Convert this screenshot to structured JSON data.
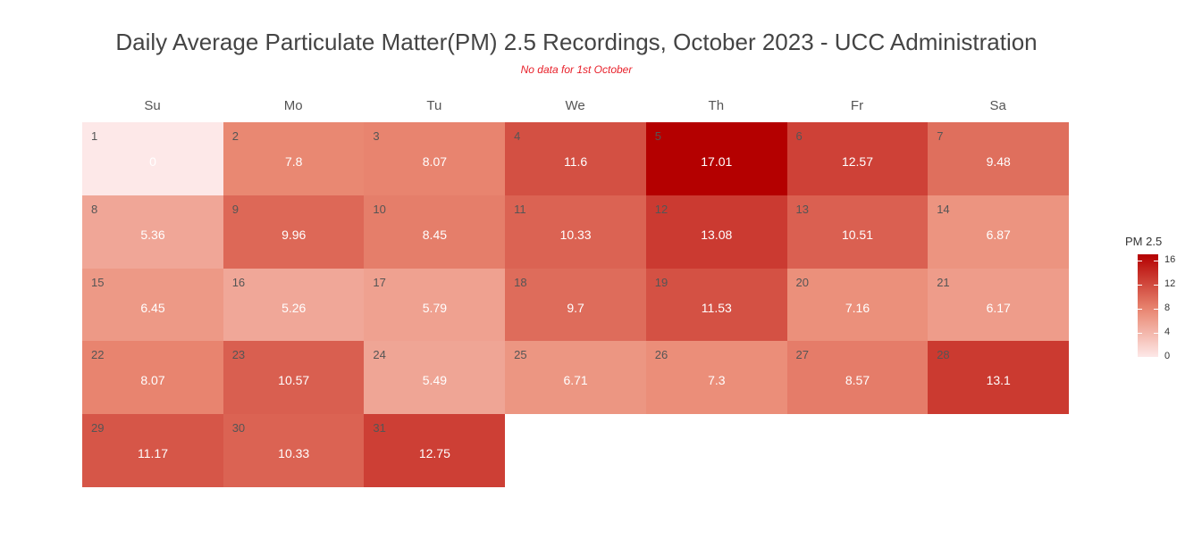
{
  "chart_data": {
    "type": "heatmap",
    "title": "Daily Average Particulate Matter(PM) 2.5 Recordings, October 2023 - UCC Administration",
    "subtitle": "No data for 1st October",
    "weekdays": [
      "Su",
      "Mo",
      "Tu",
      "We",
      "Th",
      "Fr",
      "Sa"
    ],
    "start_weekday_index": 0,
    "days": [
      1,
      2,
      3,
      4,
      5,
      6,
      7,
      8,
      9,
      10,
      11,
      12,
      13,
      14,
      15,
      16,
      17,
      18,
      19,
      20,
      21,
      22,
      23,
      24,
      25,
      26,
      27,
      28,
      29,
      30,
      31
    ],
    "values": [
      0,
      7.8,
      8.07,
      11.6,
      17.01,
      12.57,
      9.48,
      5.36,
      9.96,
      8.45,
      10.33,
      13.08,
      10.51,
      6.87,
      6.45,
      5.26,
      5.79,
      9.7,
      11.53,
      7.16,
      6.17,
      8.07,
      10.57,
      5.49,
      6.71,
      7.3,
      8.57,
      13.1,
      11.17,
      10.33,
      12.75
    ],
    "value_labels": [
      "0",
      "7.8",
      "8.07",
      "11.6",
      "17.01",
      "12.57",
      "9.48",
      "5.36",
      "9.96",
      "8.45",
      "10.33",
      "13.08",
      "10.51",
      "6.87",
      "6.45",
      "5.26",
      "5.79",
      "9.7",
      "11.53",
      "7.16",
      "6.17",
      "8.07",
      "10.57",
      "5.49",
      "6.71",
      "7.3",
      "8.57",
      "13.1",
      "11.17",
      "10.33",
      "12.75"
    ],
    "legend": {
      "title": "PM 2.5",
      "ticks": [
        "0",
        "4",
        "8",
        "12",
        "16"
      ],
      "tick_values": [
        0,
        4,
        8,
        12,
        16
      ],
      "range": [
        0,
        17.01
      ],
      "placement": "right"
    },
    "color_low": "#fde8e8",
    "color_high": "#b40000"
  }
}
